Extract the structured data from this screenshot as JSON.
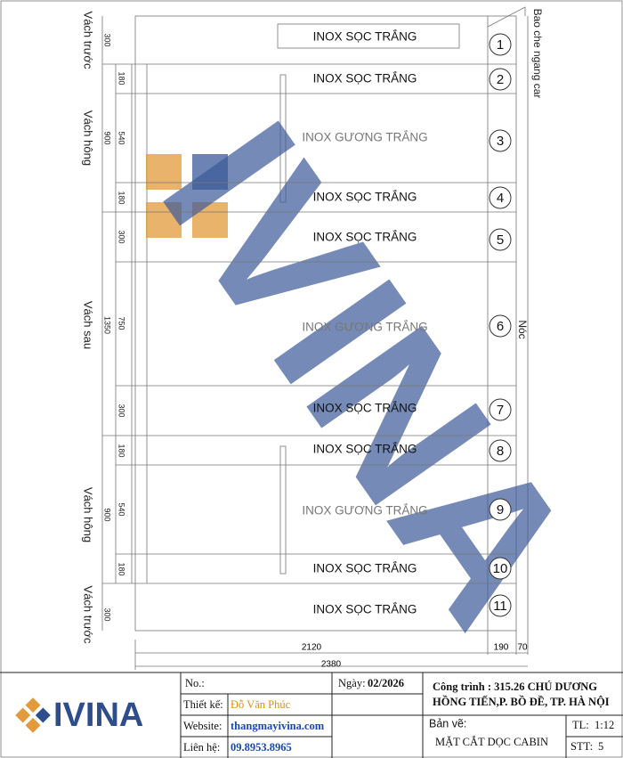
{
  "left_walls": [
    {
      "label": "Vách trước",
      "dim": 300
    },
    {
      "label": "Vách hông",
      "dim": 900
    },
    {
      "label": "Vách sau",
      "dim": 1350
    },
    {
      "label": "Vách hông",
      "dim": 900
    },
    {
      "label": "Vách trước",
      "dim": 300
    }
  ],
  "inner_dims": [
    180,
    540,
    180,
    300,
    750,
    300,
    180,
    540,
    180
  ],
  "panels": [
    {
      "label": "INOX SỌC TRẮNG",
      "no": 1
    },
    {
      "label": "INOX SỌC TRẮNG",
      "no": 2
    },
    {
      "label": "INOX GƯƠNG TRẮNG",
      "no": 3
    },
    {
      "label": "INOX SỌC TRẮNG",
      "no": 4
    },
    {
      "label": "INOX SỌC TRẮNG",
      "no": 5
    },
    {
      "label": "INOX GƯƠNG TRẮNG",
      "no": 6
    },
    {
      "label": "INOX SỌC TRẮNG",
      "no": 7
    },
    {
      "label": "INOX SỌC TRẮNG",
      "no": 8
    },
    {
      "label": "INOX GƯƠNG TRẮNG",
      "no": 9
    },
    {
      "label": "INOX SỌC TRẮNG",
      "no": 10
    },
    {
      "label": "INOX SỌC TRẮNG",
      "no": 11
    }
  ],
  "right_labels": {
    "top": "Bao che ngang car",
    "roof": "Nóc"
  },
  "bottom_dims": {
    "inner": 2120,
    "side": 190,
    "edge": 70,
    "total": 2380
  },
  "watermark": "IVINA",
  "title_block": {
    "logo": "IVINA",
    "no": "No.:",
    "date_label": "Ngày:",
    "date": "02/2026",
    "project_line1": "Công trình : 315.26 CHÚ DƯƠNG",
    "project_line2": "HỒNG TIẾN,P. BỒ ĐỀ, TP. HÀ NỘI",
    "designer_label": "Thiết kế:",
    "designer": "Đỗ Văn Phúc",
    "website_label": "Website:",
    "website": "thangmayivina.com",
    "contact_label": "Liên hệ:",
    "contact": "09.8953.8965",
    "drawing_label": "Bản vẽ:",
    "drawing": "MẶT CẮT DỌC CABIN",
    "scale_label": "TL:",
    "scale": "1:12",
    "stt_label": "STT:",
    "stt": "5"
  }
}
